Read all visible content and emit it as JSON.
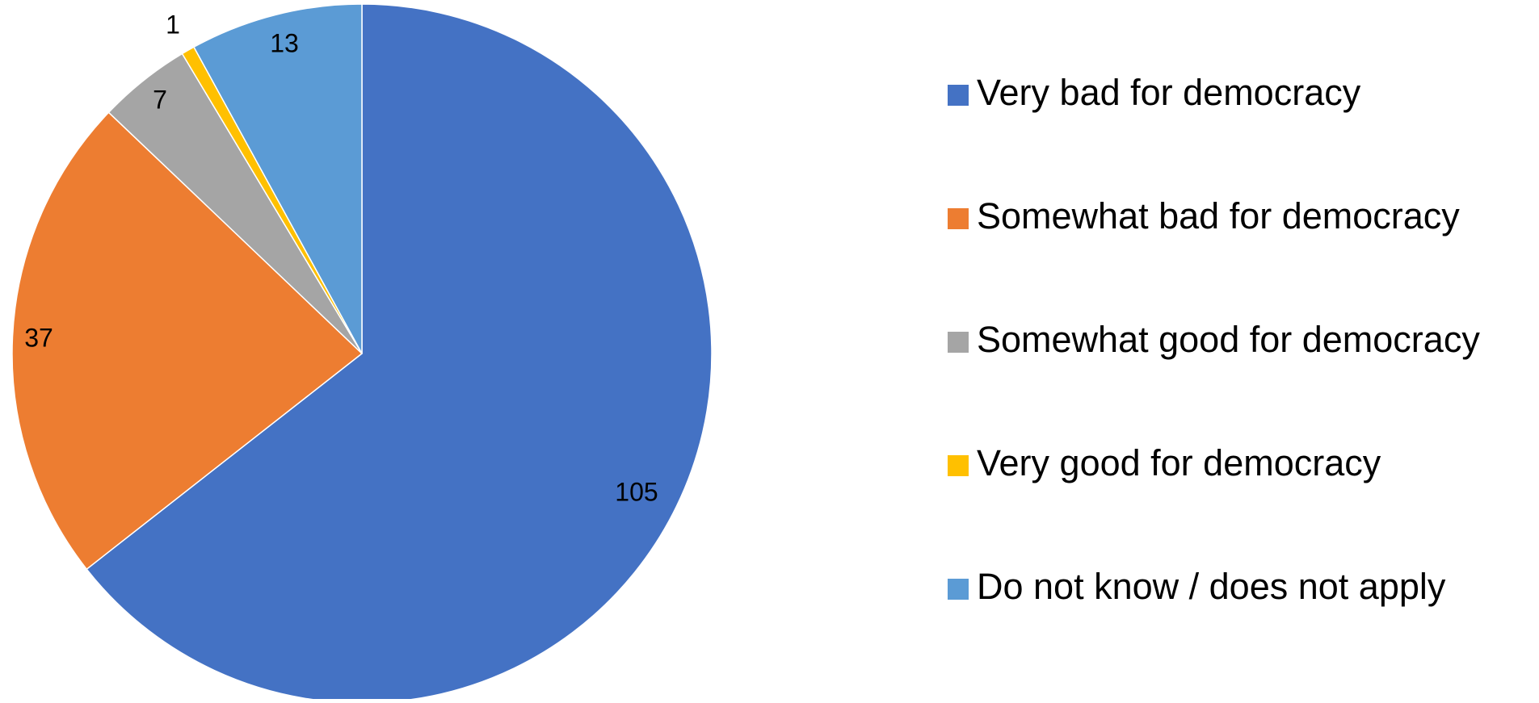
{
  "chart_data": {
    "type": "pie",
    "title": "",
    "categories": [
      "Very bad for democracy",
      "Somewhat bad for democracy",
      "Somewhat good for democracy",
      "Very good for democracy",
      "Do not know / does not apply"
    ],
    "values": [
      105,
      37,
      7,
      1,
      13
    ],
    "colors": [
      "#4472C4",
      "#ED7D31",
      "#A5A5A5",
      "#FFC000",
      "#5B9BD5"
    ],
    "data_labels": [
      "105",
      "37",
      "7",
      "1",
      "13"
    ],
    "start_angle": "12 o'clock",
    "direction": "clockwise",
    "legend_position": "right"
  }
}
